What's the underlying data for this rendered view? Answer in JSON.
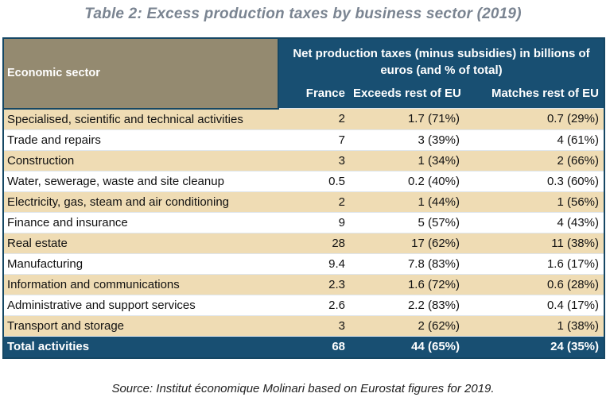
{
  "title": "Table 2: Excess production taxes by business sector (2019)",
  "header": {
    "sector_label": "Economic sector",
    "group_label": "Net production taxes (minus subsidies) in billions of euros (and % of total)",
    "columns": [
      "France",
      "Exceeds rest of EU",
      "Matches rest of EU"
    ]
  },
  "rows": [
    {
      "sector": "Specialised, scientific and technical activities",
      "france": "2",
      "exceeds": "1.7 (71%)",
      "matches": "0.7 (29%)"
    },
    {
      "sector": "Trade and repairs",
      "france": "7",
      "exceeds": "3 (39%)",
      "matches": "4 (61%)"
    },
    {
      "sector": "Construction",
      "france": "3",
      "exceeds": "1 (34%)",
      "matches": "2 (66%)"
    },
    {
      "sector": "Water, sewerage, waste and site cleanup",
      "france": "0.5",
      "exceeds": "0.2 (40%)",
      "matches": "0.3 (60%)"
    },
    {
      "sector": "Electricity, gas, steam and air conditioning",
      "france": "2",
      "exceeds": "1 (44%)",
      "matches": "1 (56%)"
    },
    {
      "sector": "Finance and insurance",
      "france": "9",
      "exceeds": "5 (57%)",
      "matches": "4 (43%)"
    },
    {
      "sector": "Real estate",
      "france": "28",
      "exceeds": "17 (62%)",
      "matches": "11 (38%)"
    },
    {
      "sector": "Manufacturing",
      "france": "9.4",
      "exceeds": "7.8 (83%)",
      "matches": "1.6 (17%)"
    },
    {
      "sector": "Information and communications",
      "france": "2.3",
      "exceeds": "1.6 (72%)",
      "matches": "0.6 (28%)"
    },
    {
      "sector": "Administrative and support services",
      "france": "2.6",
      "exceeds": "2.2 (83%)",
      "matches": "0.4 (17%)"
    },
    {
      "sector": "Transport and storage",
      "france": "3",
      "exceeds": "2 (62%)",
      "matches": "1 (38%)"
    }
  ],
  "total": {
    "sector": "Total activities",
    "france": "68",
    "exceeds": "44 (65%)",
    "matches": "24 (35%)"
  },
  "source": "Source: Institut économique Molinari based on Eurostat figures for 2019.",
  "colors": {
    "header_blue": "#184f72",
    "header_taupe": "#948a70",
    "row_beige": "#efdcb4",
    "title_gray": "#7a8491"
  }
}
